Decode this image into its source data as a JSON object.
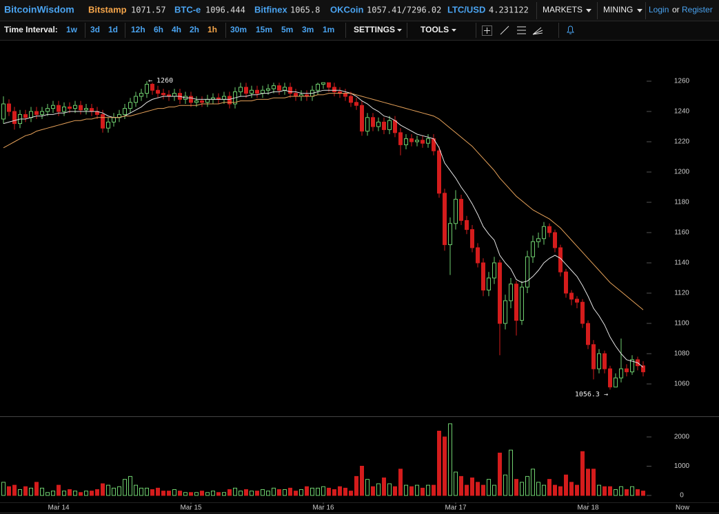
{
  "header": {
    "brand": "BitcoinWisdom",
    "tickers": [
      {
        "name": "Bitstamp",
        "price": "1071.57"
      },
      {
        "name": "BTC-e",
        "price": "1096.444"
      },
      {
        "name": "Bitfinex",
        "price": "1065.8"
      },
      {
        "name": "OKCoin",
        "price": "1057.41/7296.02"
      },
      {
        "name": "LTC/USD",
        "price": "4.231122"
      }
    ],
    "menus": [
      "MARKETS",
      "MINING"
    ],
    "login": "Login",
    "or": "or",
    "register": "Register"
  },
  "toolbar": {
    "label": "Time Interval:",
    "intervals": [
      "1w",
      "3d",
      "1d",
      "12h",
      "6h",
      "4h",
      "2h",
      "1h",
      "30m",
      "15m",
      "5m",
      "3m",
      "1m"
    ],
    "active": "1h",
    "settings": "SETTINGS",
    "tools": "TOOLS"
  },
  "chart_data": {
    "type": "candlestick",
    "categories": [
      null,
      null,
      null,
      null,
      null,
      null,
      null,
      null,
      null,
      null,
      "Mar 14",
      null,
      null,
      null,
      null,
      null,
      null,
      null,
      null,
      null,
      null,
      null,
      null,
      null,
      null,
      null,
      null,
      null,
      null,
      null,
      null,
      null,
      null,
      null,
      "Mar 15",
      null,
      null,
      null,
      null,
      null,
      null,
      null,
      null,
      null,
      null,
      null,
      null,
      null,
      null,
      null,
      null,
      null,
      null,
      null,
      null,
      null,
      null,
      null,
      "Mar 16",
      null,
      null,
      null,
      null,
      null,
      null,
      null,
      null,
      null,
      null,
      null,
      null,
      null,
      null,
      null,
      null,
      null,
      null,
      null,
      null,
      null,
      null,
      null,
      "Mar 17",
      null,
      null,
      null,
      null,
      null,
      null,
      null,
      null,
      null,
      null,
      null,
      null,
      null,
      null,
      null,
      null,
      null,
      null,
      null,
      null,
      null,
      null,
      null,
      "Mar 18",
      null,
      null,
      null,
      null,
      null,
      null,
      null,
      null,
      null,
      null
    ],
    "x_end_label": "Now",
    "open": [
      1235,
      1245,
      1240,
      1232,
      1238,
      1236,
      1240,
      1238,
      1240,
      1242,
      1244,
      1240,
      1243,
      1242,
      1244,
      1241,
      1242,
      1240,
      1238,
      1229,
      1233,
      1236,
      1238,
      1242,
      1246,
      1250,
      1252,
      1258,
      1254,
      1252,
      1251,
      1250,
      1252,
      1248,
      1250,
      1246,
      1247,
      1246,
      1248,
      1249,
      1248,
      1250,
      1245,
      1253,
      1256,
      1252,
      1254,
      1252,
      1254,
      1255,
      1257,
      1254,
      1256,
      1252,
      1250,
      1251,
      1250,
      1254,
      1258,
      1259,
      1256,
      1253,
      1252,
      1250,
      1246,
      1244,
      1227,
      1236,
      1230,
      1233,
      1228,
      1234,
      1226,
      1218,
      1222,
      1220,
      1221,
      1219,
      1222,
      1214,
      1186,
      1152,
      1166,
      1182,
      1168,
      1162,
      1150,
      1140,
      1122,
      1130,
      1140,
      1100,
      1115,
      1126,
      1102,
      1124,
      1144,
      1154,
      1156,
      1164,
      1160,
      1150,
      1134,
      1120,
      1116,
      1114,
      1100,
      1086,
      1070,
      1080,
      1070,
      1058,
      1064,
      1070,
      1068,
      1076,
      1072
    ],
    "high": [
      1250,
      1248,
      1243,
      1241,
      1241,
      1243,
      1243,
      1243,
      1245,
      1247,
      1247,
      1246,
      1246,
      1247,
      1247,
      1245,
      1245,
      1243,
      1241,
      1236,
      1239,
      1241,
      1245,
      1249,
      1253,
      1255,
      1260,
      1259,
      1257,
      1255,
      1254,
      1255,
      1255,
      1253,
      1253,
      1250,
      1250,
      1251,
      1252,
      1252,
      1253,
      1253,
      1256,
      1259,
      1259,
      1257,
      1257,
      1257,
      1258,
      1259,
      1259,
      1259,
      1259,
      1255,
      1254,
      1254,
      1257,
      1259,
      1259,
      1259,
      1259,
      1256,
      1255,
      1253,
      1249,
      1247,
      1239,
      1239,
      1236,
      1236,
      1237,
      1237,
      1229,
      1225,
      1225,
      1224,
      1224,
      1225,
      1225,
      1217,
      1189,
      1170,
      1188,
      1185,
      1171,
      1165,
      1153,
      1143,
      1134,
      1144,
      1142,
      1119,
      1130,
      1128,
      1128,
      1148,
      1158,
      1160,
      1167,
      1166,
      1162,
      1152,
      1136,
      1122,
      1118,
      1116,
      1102,
      1089,
      1083,
      1082,
      1072,
      1067,
      1090,
      1073,
      1079,
      1078,
      1075
    ],
    "low": [
      1232,
      1237,
      1228,
      1229,
      1233,
      1233,
      1235,
      1235,
      1237,
      1239,
      1237,
      1237,
      1239,
      1239,
      1238,
      1238,
      1237,
      1235,
      1226,
      1226,
      1230,
      1233,
      1235,
      1239,
      1243,
      1247,
      1249,
      1251,
      1249,
      1248,
      1247,
      1247,
      1245,
      1245,
      1243,
      1243,
      1243,
      1243,
      1245,
      1245,
      1245,
      1242,
      1242,
      1250,
      1249,
      1249,
      1249,
      1249,
      1251,
      1252,
      1251,
      1251,
      1249,
      1247,
      1247,
      1247,
      1247,
      1251,
      1255,
      1253,
      1250,
      1249,
      1247,
      1243,
      1241,
      1224,
      1224,
      1227,
      1227,
      1225,
      1225,
      1223,
      1211,
      1215,
      1217,
      1217,
      1216,
      1216,
      1211,
      1183,
      1148,
      1132,
      1162,
      1165,
      1159,
      1147,
      1137,
      1118,
      1118,
      1126,
      1079,
      1096,
      1110,
      1092,
      1099,
      1120,
      1140,
      1150,
      1152,
      1157,
      1147,
      1131,
      1117,
      1112,
      1110,
      1097,
      1083,
      1063,
      1067,
      1067,
      1056.3,
      1058,
      1061,
      1065,
      1066,
      1069,
      1065
    ],
    "close": [
      1245,
      1240,
      1232,
      1238,
      1236,
      1240,
      1238,
      1240,
      1242,
      1244,
      1240,
      1243,
      1242,
      1244,
      1241,
      1242,
      1240,
      1238,
      1229,
      1233,
      1236,
      1238,
      1242,
      1246,
      1250,
      1252,
      1258,
      1254,
      1252,
      1251,
      1250,
      1252,
      1248,
      1250,
      1246,
      1247,
      1246,
      1248,
      1249,
      1248,
      1250,
      1245,
      1253,
      1256,
      1252,
      1254,
      1252,
      1254,
      1255,
      1257,
      1254,
      1256,
      1252,
      1250,
      1251,
      1250,
      1254,
      1258,
      1259,
      1256,
      1253,
      1252,
      1250,
      1246,
      1244,
      1227,
      1236,
      1230,
      1233,
      1228,
      1234,
      1226,
      1218,
      1222,
      1220,
      1221,
      1219,
      1222,
      1214,
      1186,
      1152,
      1166,
      1182,
      1168,
      1162,
      1150,
      1140,
      1122,
      1130,
      1140,
      1100,
      1115,
      1126,
      1102,
      1124,
      1144,
      1154,
      1156,
      1164,
      1160,
      1150,
      1134,
      1120,
      1116,
      1114,
      1100,
      1086,
      1070,
      1080,
      1070,
      1058,
      1064,
      1070,
      1068,
      1076,
      1072,
      1068
    ],
    "up_color": "#6fd06f",
    "down_color": "#d41c1c",
    "series": [
      {
        "color": "#e6e6e6",
        "values": [
          1232,
          1233,
          1234,
          1235,
          1235,
          1236,
          1237,
          1237,
          1238,
          1238,
          1239,
          1239,
          1240,
          1240,
          1240,
          1240,
          1240,
          1240,
          1239,
          1237,
          1236,
          1236,
          1237,
          1239,
          1241,
          1243,
          1246,
          1248,
          1249,
          1250,
          1250,
          1250,
          1250,
          1249,
          1249,
          1248,
          1248,
          1248,
          1248,
          1248,
          1248,
          1248,
          1249,
          1250,
          1250,
          1251,
          1251,
          1252,
          1252,
          1253,
          1253,
          1254,
          1253,
          1253,
          1252,
          1252,
          1252,
          1253,
          1254,
          1254,
          1254,
          1254,
          1253,
          1252,
          1250,
          1247,
          1245,
          1242,
          1240,
          1237,
          1236,
          1234,
          1231,
          1229,
          1227,
          1225,
          1224,
          1223,
          1222,
          1216,
          1206,
          1201,
          1196,
          1190,
          1185,
          1179,
          1172,
          1164,
          1159,
          1155,
          1145,
          1140,
          1136,
          1129,
          1127,
          1128,
          1131,
          1135,
          1140,
          1143,
          1145,
          1143,
          1139,
          1135,
          1131,
          1125,
          1118,
          1110,
          1105,
          1099,
          1091,
          1085,
          1080,
          1076,
          1075,
          1074,
          1071
        ]
      },
      {
        "color": "#e8a35a",
        "values": [
          1216,
          1218,
          1220,
          1222,
          1224,
          1225,
          1227,
          1228,
          1229,
          1230,
          1231,
          1232,
          1233,
          1234,
          1234,
          1235,
          1235,
          1236,
          1236,
          1236,
          1236,
          1236,
          1237,
          1237,
          1238,
          1239,
          1240,
          1241,
          1242,
          1242,
          1243,
          1243,
          1244,
          1244,
          1244,
          1244,
          1245,
          1245,
          1245,
          1245,
          1246,
          1246,
          1246,
          1247,
          1247,
          1247,
          1248,
          1248,
          1248,
          1249,
          1249,
          1249,
          1250,
          1250,
          1250,
          1250,
          1250,
          1251,
          1251,
          1252,
          1252,
          1252,
          1252,
          1252,
          1251,
          1250,
          1249,
          1248,
          1247,
          1246,
          1245,
          1244,
          1243,
          1242,
          1241,
          1240,
          1239,
          1238,
          1237,
          1235,
          1232,
          1229,
          1226,
          1223,
          1220,
          1217,
          1213,
          1209,
          1205,
          1201,
          1196,
          1192,
          1188,
          1184,
          1181,
          1178,
          1175,
          1173,
          1171,
          1169,
          1166,
          1163,
          1159,
          1155,
          1151,
          1147,
          1143,
          1139,
          1135,
          1131,
          1127,
          1124,
          1121,
          1118,
          1115,
          1112,
          1109
        ]
      },
      {
        "axis": "y2",
        "values": [
          450,
          300,
          350,
          200,
          300,
          250,
          450,
          250,
          100,
          150,
          350,
          150,
          200,
          150,
          100,
          150,
          150,
          200,
          400,
          350,
          250,
          300,
          550,
          650,
          350,
          250,
          250,
          200,
          250,
          150,
          150,
          200,
          150,
          100,
          100,
          100,
          150,
          100,
          150,
          100,
          100,
          200,
          250,
          150,
          200,
          150,
          150,
          200,
          150,
          250,
          200,
          200,
          250,
          150,
          200,
          300,
          250,
          250,
          300,
          250,
          200,
          300,
          250,
          150,
          650,
          1000,
          550,
          300,
          400,
          600,
          400,
          300,
          900,
          350,
          300,
          350,
          250,
          350,
          350,
          2200,
          2000,
          2450,
          800,
          650,
          350,
          600,
          450,
          350,
          550,
          350,
          1450,
          700,
          1550,
          550,
          450,
          650,
          900,
          450,
          350,
          550,
          350,
          300,
          700,
          450,
          350,
          1500,
          900,
          900,
          350,
          300,
          300,
          200,
          300,
          200,
          300,
          200,
          150
        ]
      }
    ],
    "ylim": [
      1039,
      1285
    ],
    "yticks": [
      1060,
      1080,
      1100,
      1120,
      1140,
      1160,
      1180,
      1200,
      1220,
      1240,
      1260
    ],
    "y2lim": [
      -235,
      2680
    ],
    "y2ticks": [
      0,
      1000,
      2000
    ],
    "annotations": [
      {
        "label": "← 1260",
        "value": 1260
      },
      {
        "label": "1056.3 →",
        "value": 1056.3
      }
    ]
  }
}
